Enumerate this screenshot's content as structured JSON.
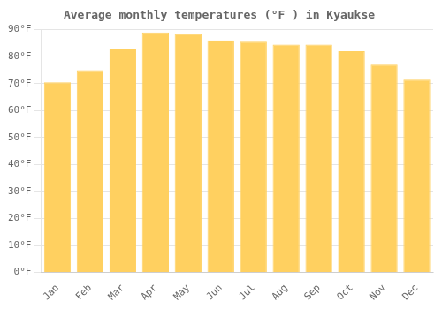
{
  "chart_data": {
    "type": "bar",
    "title": "Average monthly temperatures (°F ) in Kyaukse",
    "categories": [
      "Jan",
      "Feb",
      "Mar",
      "Apr",
      "May",
      "Jun",
      "Jul",
      "Aug",
      "Sep",
      "Oct",
      "Nov",
      "Dec"
    ],
    "values": [
      70.5,
      75.0,
      83.0,
      89.0,
      88.5,
      86.0,
      85.5,
      84.5,
      84.5,
      82.0,
      77.0,
      71.5
    ],
    "color": "#FFD060",
    "ylim": [
      0,
      90
    ],
    "yticks": [
      {
        "value": 0,
        "label": "0°F"
      },
      {
        "value": 10,
        "label": "10°F"
      },
      {
        "value": 20,
        "label": "20°F"
      },
      {
        "value": 30,
        "label": "30°F"
      },
      {
        "value": 40,
        "label": "40°F"
      },
      {
        "value": 50,
        "label": "50°F"
      },
      {
        "value": 60,
        "label": "60°F"
      },
      {
        "value": 70,
        "label": "70°F"
      },
      {
        "value": 80,
        "label": "80°F"
      },
      {
        "value": 90,
        "label": "90°F"
      }
    ],
    "grid": true
  }
}
